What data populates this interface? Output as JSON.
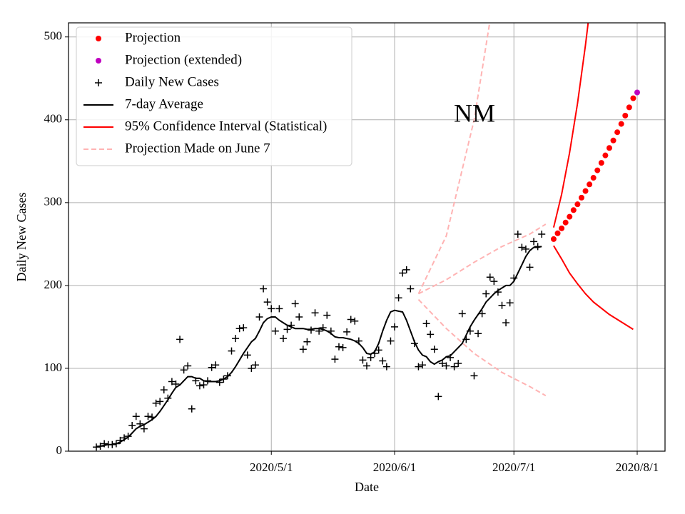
{
  "chart_data": {
    "type": "line",
    "annotation": "NM",
    "xlabel": "Date",
    "ylabel": "Daily New Cases",
    "xlim": [
      "2020-03-11",
      "2020-08-08"
    ],
    "ylim": [
      0,
      517
    ],
    "xticks": [
      {
        "value": "2020-05-01",
        "label": "2020/5/1"
      },
      {
        "value": "2020-06-01",
        "label": "2020/6/1"
      },
      {
        "value": "2020-07-01",
        "label": "2020/7/1"
      },
      {
        "value": "2020-08-01",
        "label": "2020/8/1"
      }
    ],
    "yticks": [
      0,
      100,
      200,
      300,
      400,
      500
    ],
    "grid": true,
    "legend": "upper left",
    "x": [
      "2020-03-18",
      "2020-03-19",
      "2020-03-20",
      "2020-03-21",
      "2020-03-22",
      "2020-03-23",
      "2020-03-24",
      "2020-03-25",
      "2020-03-26",
      "2020-03-27",
      "2020-03-28",
      "2020-03-29",
      "2020-03-30",
      "2020-03-31",
      "2020-04-01",
      "2020-04-02",
      "2020-04-03",
      "2020-04-04",
      "2020-04-05",
      "2020-04-06",
      "2020-04-07",
      "2020-04-08",
      "2020-04-09",
      "2020-04-10",
      "2020-04-11",
      "2020-04-12",
      "2020-04-13",
      "2020-04-14",
      "2020-04-15",
      "2020-04-16",
      "2020-04-17",
      "2020-04-18",
      "2020-04-19",
      "2020-04-20",
      "2020-04-21",
      "2020-04-22",
      "2020-04-23",
      "2020-04-24",
      "2020-04-25",
      "2020-04-26",
      "2020-04-27",
      "2020-04-28",
      "2020-04-29",
      "2020-04-30",
      "2020-05-01",
      "2020-05-02",
      "2020-05-03",
      "2020-05-04",
      "2020-05-05",
      "2020-05-06",
      "2020-05-07",
      "2020-05-08",
      "2020-05-09",
      "2020-05-10",
      "2020-05-11",
      "2020-05-12",
      "2020-05-13",
      "2020-05-14",
      "2020-05-15",
      "2020-05-16",
      "2020-05-17",
      "2020-05-18",
      "2020-05-19",
      "2020-05-20",
      "2020-05-21",
      "2020-05-22",
      "2020-05-23",
      "2020-05-24",
      "2020-05-25",
      "2020-05-26",
      "2020-05-27",
      "2020-05-28",
      "2020-05-29",
      "2020-05-30",
      "2020-05-31",
      "2020-06-01",
      "2020-06-02",
      "2020-06-03",
      "2020-06-04",
      "2020-06-05",
      "2020-06-06",
      "2020-06-07",
      "2020-06-08",
      "2020-06-09",
      "2020-06-10",
      "2020-06-11",
      "2020-06-12",
      "2020-06-13",
      "2020-06-14",
      "2020-06-15",
      "2020-06-16",
      "2020-06-17",
      "2020-06-18",
      "2020-06-19",
      "2020-06-20",
      "2020-06-21",
      "2020-06-22",
      "2020-06-23",
      "2020-06-24",
      "2020-06-25",
      "2020-06-26",
      "2020-06-27",
      "2020-06-28",
      "2020-06-29",
      "2020-06-30",
      "2020-07-01",
      "2020-07-02",
      "2020-07-03",
      "2020-07-04",
      "2020-07-05",
      "2020-07-06",
      "2020-07-07",
      "2020-07-08"
    ],
    "series": [
      {
        "name": "Projection",
        "color": "#ff0000",
        "style": "dot",
        "x": [
          "2020-07-11",
          "2020-07-12",
          "2020-07-13",
          "2020-07-14",
          "2020-07-15",
          "2020-07-16",
          "2020-07-17",
          "2020-07-18",
          "2020-07-19",
          "2020-07-20",
          "2020-07-21",
          "2020-07-22",
          "2020-07-23",
          "2020-07-24",
          "2020-07-25",
          "2020-07-26",
          "2020-07-27",
          "2020-07-28",
          "2020-07-29",
          "2020-07-30",
          "2020-07-31"
        ],
        "values": [
          256,
          263,
          269,
          276,
          283,
          291,
          298,
          306,
          314,
          322,
          330,
          339,
          348,
          357,
          366,
          375,
          385,
          395,
          405,
          415,
          426
        ]
      },
      {
        "name": "Projection (extended)",
        "color": "#bf00bf",
        "style": "dot",
        "x": [
          "2020-08-01"
        ],
        "values": [
          433
        ]
      },
      {
        "name": "Daily New Cases",
        "color": "#000000",
        "style": "plus",
        "values": [
          5,
          6,
          9,
          8,
          8,
          9,
          13,
          16,
          18,
          31,
          42,
          33,
          27,
          42,
          41,
          58,
          60,
          74,
          64,
          84,
          81,
          135,
          98,
          103,
          51,
          85,
          79,
          80,
          85,
          101,
          104,
          83,
          87,
          91,
          121,
          136,
          148,
          149,
          116,
          100,
          104,
          162,
          196,
          180,
          172,
          145,
          172,
          136,
          147,
          152,
          178,
          162,
          123,
          132,
          146,
          167,
          145,
          149,
          164,
          145,
          111,
          126,
          125,
          144,
          159,
          157,
          133,
          110,
          103,
          113,
          118,
          122,
          109,
          102,
          133,
          150,
          185,
          215,
          219,
          196,
          130,
          102,
          104,
          154,
          141,
          123,
          66,
          106,
          103,
          113,
          102,
          106,
          166,
          135,
          145,
          91,
          142,
          166,
          190,
          210,
          205,
          192,
          176,
          155,
          179,
          209,
          262,
          246,
          244,
          222,
          253,
          247,
          262
        ]
      },
      {
        "name": "7-day Average",
        "color": "#000000",
        "style": "line",
        "values": [
          5,
          6,
          7,
          8,
          8,
          9,
          11,
          14,
          17,
          22,
          27,
          30,
          32,
          35,
          38,
          42,
          48,
          55,
          62,
          70,
          77,
          80,
          85,
          90,
          90,
          88,
          88,
          85,
          84,
          84,
          84,
          85,
          87,
          90,
          95,
          102,
          110,
          118,
          125,
          132,
          136,
          145,
          155,
          160,
          162,
          162,
          158,
          155,
          152,
          150,
          148,
          148,
          148,
          147,
          147,
          148,
          148,
          147,
          145,
          142,
          138,
          137,
          137,
          136,
          135,
          133,
          130,
          125,
          118,
          117,
          120,
          130,
          145,
          158,
          168,
          170,
          169,
          168,
          158,
          145,
          132,
          122,
          116,
          114,
          108,
          105,
          108,
          110,
          114,
          115,
          120,
          125,
          130,
          140,
          150,
          158,
          165,
          172,
          180,
          185,
          190,
          194,
          197,
          200,
          200,
          205,
          215,
          225,
          235,
          242,
          246,
          246,
          247
        ]
      },
      {
        "name": "95% Confidence Interval (Statistical)",
        "color": "#ff0000",
        "style": "band-lines",
        "x": [
          "2020-07-11",
          "2020-07-13",
          "2020-07-15",
          "2020-07-17",
          "2020-07-19",
          "2020-07-21",
          "2020-07-25",
          "2020-07-31"
        ],
        "upper": [
          270,
          310,
          360,
          420,
          490,
          570,
          780,
          1200
        ],
        "lower": [
          248,
          232,
          215,
          202,
          190,
          180,
          165,
          147
        ]
      },
      {
        "name": "Projection Made on June 7",
        "color": "#ffb3b3",
        "style": "dashed",
        "x": [
          "2020-06-07",
          "2020-06-14",
          "2020-06-21",
          "2020-06-28",
          "2020-07-05",
          "2020-07-09"
        ],
        "values": [
          190,
          207,
          228,
          247,
          262,
          274
        ],
        "upper": [
          190,
          260,
          400,
          610,
          800,
          1000
        ],
        "lower": [
          183,
          148,
          118,
          95,
          78,
          67
        ]
      }
    ]
  }
}
